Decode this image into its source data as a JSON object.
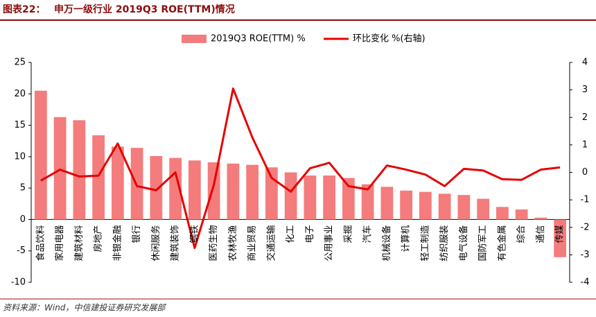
{
  "header": {
    "label": "图表22：",
    "title": "申万一级行业 2019Q3 ROE(TTM)情况"
  },
  "source": "资料来源：Wind，中信建投证券研究发展部",
  "chart_data": {
    "type": "bar-line",
    "categories": [
      "食品饮料",
      "家用电器",
      "建筑材料",
      "房地产",
      "非银金融",
      "银行",
      "休闲服务",
      "建筑装饰",
      "钢铁",
      "医药生物",
      "农林牧渔",
      "商业贸易",
      "交通运输",
      "化工",
      "电子",
      "公用事业",
      "采掘",
      "汽车",
      "机械设备",
      "计算机",
      "轻工制造",
      "纺织服装",
      "电气设备",
      "国防军工",
      "有色金属",
      "综合",
      "通信",
      "传媒"
    ],
    "series": [
      {
        "name": "2019Q3 ROE(TTM) %",
        "type": "bar",
        "color": "#f47c7c",
        "values": [
          20.5,
          16.3,
          15.8,
          13.4,
          11.6,
          11.4,
          10.1,
          9.8,
          9.4,
          9.1,
          8.9,
          8.7,
          8.3,
          7.5,
          7.0,
          7.0,
          6.6,
          5.6,
          5.2,
          4.6,
          4.4,
          4.1,
          3.9,
          3.3,
          2.0,
          1.6,
          0.3,
          -6.0
        ]
      },
      {
        "name": "环比变化 %(右轴)",
        "type": "line",
        "axis": "y2",
        "color": "#e60000",
        "values": [
          -0.3,
          0.1,
          -0.15,
          -0.12,
          1.05,
          -0.5,
          -0.65,
          0,
          -2.75,
          -0.45,
          3.05,
          1.27,
          -0.2,
          -0.7,
          0.15,
          0.35,
          -0.5,
          -0.62,
          0.25,
          0.1,
          -0.08,
          -0.5,
          0.13,
          0.07,
          -0.25,
          -0.27,
          0.1,
          0.18
        ]
      }
    ],
    "ylim": [
      -10,
      25
    ],
    "yticks": [
      -10,
      -5,
      0,
      5,
      10,
      15,
      20,
      25
    ],
    "y2lim": [
      -4,
      4
    ],
    "y2ticks": [
      -4,
      -3,
      -2,
      -1,
      0,
      1,
      2,
      3,
      4
    ],
    "legend": "top"
  }
}
